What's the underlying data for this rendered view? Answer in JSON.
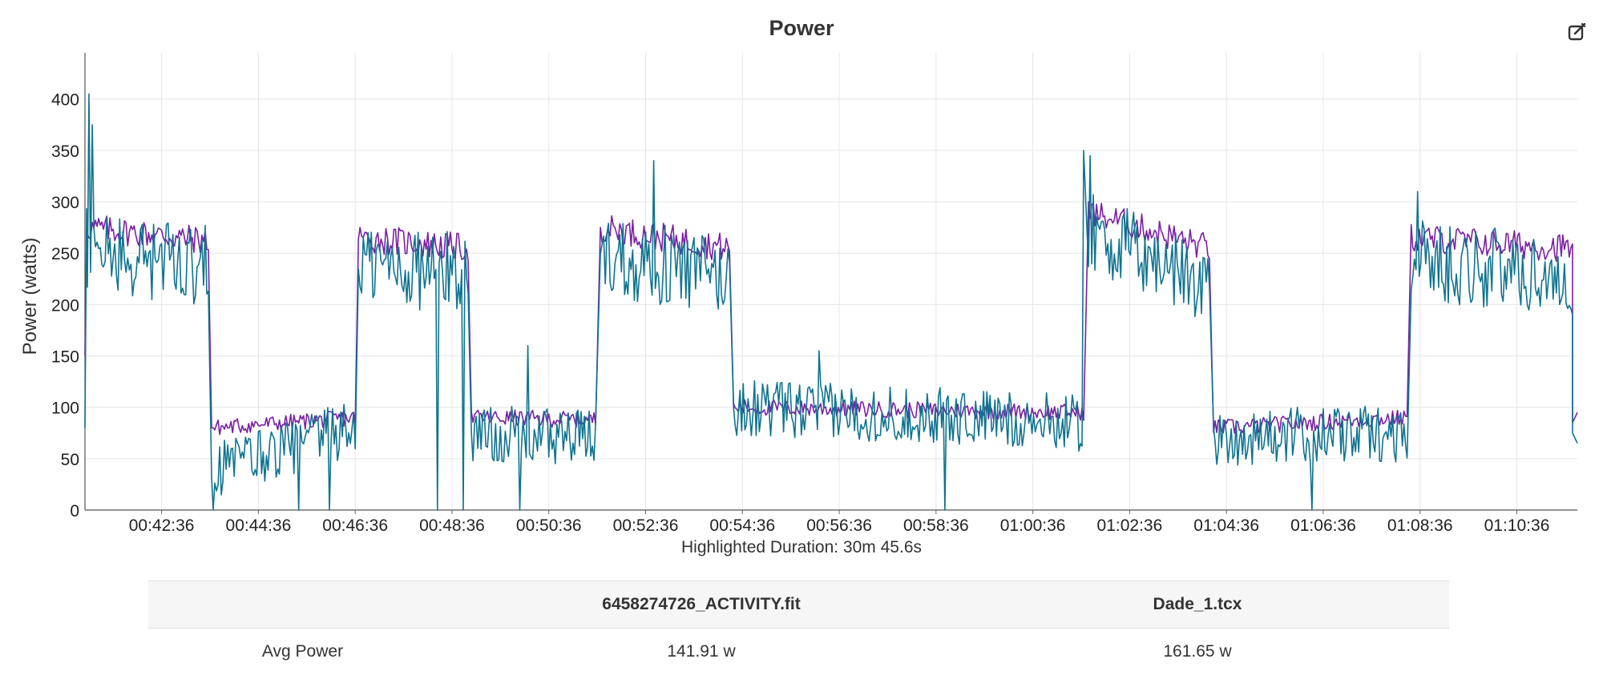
{
  "chart_data": {
    "type": "line",
    "title": "Power",
    "ylabel": "Power (watts)",
    "xlabel": "",
    "ylim": [
      0,
      445
    ],
    "yticks": [
      0,
      50,
      100,
      150,
      200,
      250,
      300,
      350,
      400
    ],
    "xlim_seconds": [
      2461,
      4311
    ],
    "xtick_labels": [
      "00:42:36",
      "00:44:36",
      "00:46:36",
      "00:48:36",
      "00:50:36",
      "00:52:36",
      "00:54:36",
      "00:56:36",
      "00:58:36",
      "01:00:36",
      "01:02:36",
      "01:04:36",
      "01:06:36",
      "01:08:36",
      "01:10:36"
    ],
    "grid": true,
    "series": [
      {
        "color": "#7b1fa2",
        "x_start": "00:41:01",
        "x_end": "01:11:51",
        "segments": [
          {
            "from": "00:41:01",
            "to": "00:41:04",
            "start_value": 150,
            "end_value": 320
          },
          {
            "from": "00:41:04",
            "to": "00:43:35",
            "start_value": 275,
            "end_value": 262,
            "noise": 14
          },
          {
            "from": "00:43:38",
            "to": "00:46:37",
            "start_value": 80,
            "end_value": 90,
            "noise": 8
          },
          {
            "from": "00:46:40",
            "to": "00:48:56",
            "start_value": 265,
            "end_value": 255,
            "noise": 14
          },
          {
            "from": "00:49:00",
            "to": "00:51:35",
            "start_value": 90,
            "end_value": 88,
            "noise": 8
          },
          {
            "from": "00:51:40",
            "to": "00:54:20",
            "start_value": 275,
            "end_value": 255,
            "noise": 14
          },
          {
            "from": "00:54:25",
            "to": "01:01:40",
            "start_value": 100,
            "end_value": 95,
            "noise": 8
          },
          {
            "from": "01:01:45",
            "to": "01:04:15",
            "start_value": 290,
            "end_value": 255,
            "noise": 14
          },
          {
            "from": "01:04:20",
            "to": "01:08:20",
            "start_value": 80,
            "end_value": 90,
            "noise": 8
          },
          {
            "from": "01:08:25",
            "to": "01:11:45",
            "start_value": 265,
            "end_value": 255,
            "noise": 14
          },
          {
            "from": "01:11:45",
            "to": "01:11:51",
            "start_value": 85,
            "end_value": 95
          }
        ]
      },
      {
        "color": "#0f7390",
        "x_start": "00:41:01",
        "x_end": "01:11:51",
        "segments": [
          {
            "from": "00:41:01",
            "to": "00:41:04",
            "start_value": 80,
            "end_value": 400
          },
          {
            "from": "00:41:04",
            "to": "00:43:35",
            "start_value": 250,
            "end_value": 238,
            "noise": 40
          },
          {
            "from": "00:43:38",
            "to": "00:46:37",
            "start_value": 40,
            "end_value": 80,
            "noise": 28
          },
          {
            "from": "00:46:40",
            "to": "00:48:56",
            "start_value": 240,
            "end_value": 230,
            "noise": 40
          },
          {
            "from": "00:49:00",
            "to": "00:51:35",
            "start_value": 75,
            "end_value": 70,
            "noise": 28
          },
          {
            "from": "00:51:40",
            "to": "00:54:20",
            "start_value": 250,
            "end_value": 225,
            "noise": 40
          },
          {
            "from": "00:54:25",
            "to": "01:01:40",
            "start_value": 100,
            "end_value": 85,
            "noise": 28
          },
          {
            "from": "01:01:45",
            "to": "01:04:15",
            "start_value": 270,
            "end_value": 220,
            "noise": 40
          },
          {
            "from": "01:04:20",
            "to": "01:08:20",
            "start_value": 70,
            "end_value": 75,
            "noise": 28
          },
          {
            "from": "01:08:25",
            "to": "01:11:45",
            "start_value": 245,
            "end_value": 225,
            "noise": 40
          },
          {
            "from": "01:11:45",
            "to": "01:11:51",
            "start_value": 75,
            "end_value": 65
          }
        ],
        "spikes": [
          {
            "x": "00:41:06",
            "value": 405
          },
          {
            "x": "00:41:11",
            "value": 375
          },
          {
            "x": "00:43:41",
            "value": 0
          },
          {
            "x": "00:45:27",
            "value": 0
          },
          {
            "x": "00:46:04",
            "value": 0
          },
          {
            "x": "00:48:19",
            "value": 0
          },
          {
            "x": "00:48:51",
            "value": 0
          },
          {
            "x": "00:50:00",
            "value": 0
          },
          {
            "x": "00:50:10",
            "value": 160
          },
          {
            "x": "00:52:46",
            "value": 340
          },
          {
            "x": "00:56:11",
            "value": 155
          },
          {
            "x": "00:58:47",
            "value": 0
          },
          {
            "x": "01:01:40",
            "value": 350
          },
          {
            "x": "01:01:48",
            "value": 345
          },
          {
            "x": "01:06:22",
            "value": 0
          },
          {
            "x": "01:08:34",
            "value": 310
          }
        ]
      }
    ]
  },
  "header": {
    "title": "Power",
    "edit_icon": "edit-icon"
  },
  "footer": {
    "highlighted_duration": "Highlighted Duration: 30m 45.6s"
  },
  "table": {
    "headers": [
      "",
      "6458274726_ACTIVITY.fit",
      "Dade_1.tcx"
    ],
    "rows": [
      {
        "metric": "Avg Power",
        "values": [
          "141.91 w",
          "161.65 w"
        ]
      }
    ]
  }
}
